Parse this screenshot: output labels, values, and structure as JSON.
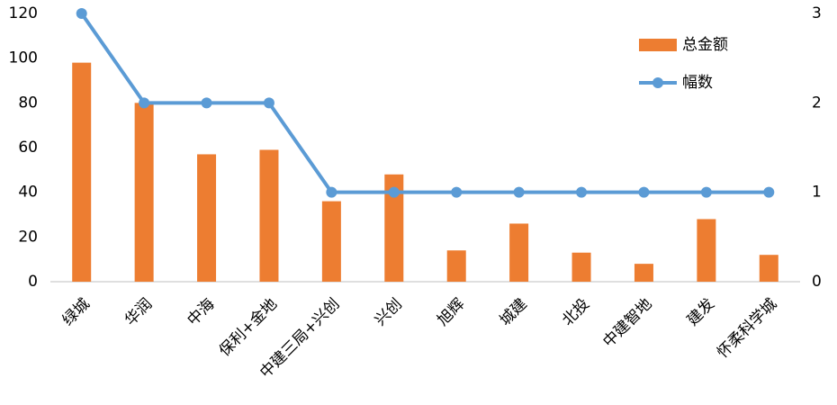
{
  "chart_data": {
    "type": "combo",
    "categories": [
      "绿城",
      "华润",
      "中海",
      "保利+金地",
      "中建三局+兴创",
      "兴创",
      "旭辉",
      "城建",
      "北投",
      "中建智地",
      "建发",
      "怀柔科学城"
    ],
    "series": [
      {
        "name": "总金额",
        "type": "bar",
        "color": "#ed7d31",
        "values": [
          98,
          80,
          57,
          59,
          36,
          48,
          14,
          26,
          13,
          8,
          28,
          12
        ]
      },
      {
        "name": "幅数",
        "type": "line",
        "axis": "y2",
        "color": "#5b9bd5",
        "values": [
          3,
          2,
          2,
          2,
          1,
          1,
          1,
          1,
          1,
          1,
          1,
          1
        ]
      }
    ],
    "ylim": [
      0,
      120
    ],
    "yticks": [
      0,
      20,
      40,
      60,
      80,
      100,
      120
    ],
    "y2lim": [
      0,
      3
    ],
    "y2ticks": [
      0,
      1,
      2,
      3
    ],
    "legend": "upper right",
    "grid": false
  }
}
